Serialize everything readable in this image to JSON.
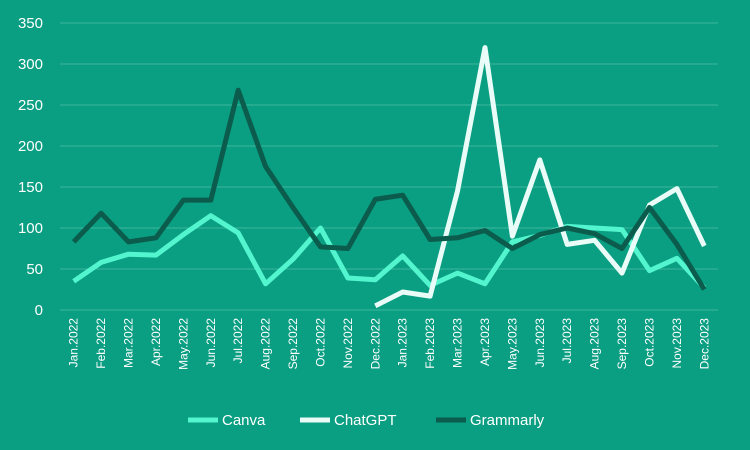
{
  "chart_data": {
    "type": "line",
    "categories": [
      "Jan.2022",
      "Feb.2022",
      "Mar.2022",
      "Apr.2022",
      "May.2022",
      "Jun.2022",
      "Jul.2022",
      "Aug.2022",
      "Sep.2022",
      "Oct.2022",
      "Nov.2022",
      "Dec.2022",
      "Jan.2023",
      "Feb.2023",
      "Mar.2023",
      "Apr.2023",
      "May.2023",
      "Jun.2023",
      "Jul.2023",
      "Aug.2023",
      "Sep.2023",
      "Oct.2023",
      "Nov.2023",
      "Dec.2023"
    ],
    "series": [
      {
        "name": "Canva",
        "color": "#53f5cf",
        "values": [
          35,
          58,
          68,
          67,
          92,
          115,
          94,
          32,
          62,
          100,
          39,
          37,
          66,
          30,
          45,
          32,
          83,
          91,
          102,
          100,
          98,
          48,
          63,
          27
        ]
      },
      {
        "name": "ChatGPT",
        "color": "#eafcf7",
        "values": [
          null,
          null,
          null,
          null,
          null,
          null,
          null,
          null,
          null,
          null,
          null,
          5,
          22,
          17,
          145,
          320,
          90,
          183,
          80,
          85,
          45,
          128,
          148,
          78
        ]
      },
      {
        "name": "Grammarly",
        "color": "#0b5c4d",
        "values": [
          83,
          118,
          83,
          88,
          134,
          134,
          268,
          175,
          125,
          77,
          75,
          135,
          140,
          86,
          88,
          97,
          75,
          92,
          100,
          93,
          75,
          125,
          80,
          25
        ]
      }
    ],
    "ylim": [
      0,
      350
    ],
    "yticks": [
      0,
      50,
      100,
      150,
      200,
      250,
      300,
      350
    ],
    "grid": true,
    "legend": "bottom",
    "title": "",
    "xlabel": "",
    "ylabel": ""
  }
}
